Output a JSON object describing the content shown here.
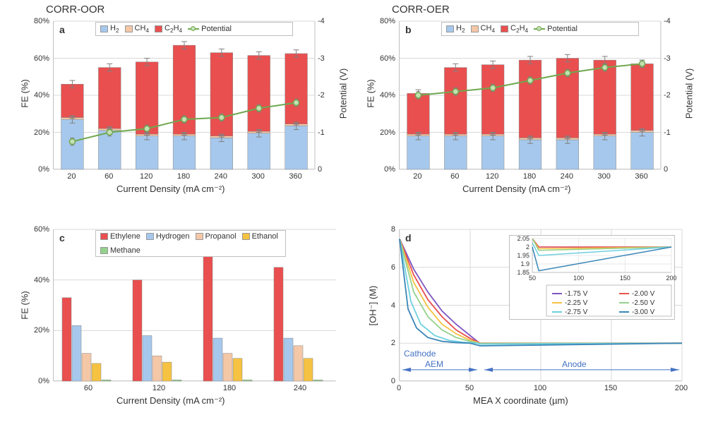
{
  "panels": {
    "a": {
      "title": "CORR-OOR",
      "label": "a",
      "xlabel": "Current Density (mA cm⁻²)",
      "ylabel": "FE (%)",
      "y2label": "Potential (V)",
      "ylim": [
        0,
        80
      ],
      "ytick_step": 20,
      "y2lim": [
        0,
        -4
      ],
      "y2tick_step": 1,
      "categories": [
        "20",
        "60",
        "120",
        "180",
        "240",
        "300",
        "360"
      ],
      "series": {
        "H2": {
          "label": "H₂",
          "color": "#a6c8ec",
          "values": [
            27,
            21,
            18,
            18,
            17,
            19.5,
            23.5
          ],
          "err": [
            2,
            2,
            2,
            2,
            2,
            2,
            2
          ]
        },
        "CH4": {
          "label": "CH₄",
          "color": "#f4c7a7",
          "values": [
            1,
            1,
            1,
            1,
            1,
            1,
            1
          ],
          "err": [
            0.5,
            0.5,
            0.5,
            0.5,
            0.5,
            0.5,
            0.5
          ]
        },
        "C2H4": {
          "label": "C₂H₄",
          "color": "#e94f4f",
          "values": [
            18,
            33,
            39,
            48,
            45,
            41,
            38
          ],
          "err": [
            2,
            2,
            2,
            2,
            2,
            2,
            2
          ]
        }
      },
      "stack_order": [
        "H2",
        "CH4",
        "C2H4"
      ],
      "potential": {
        "label": "Potential",
        "color": "#6fa84f",
        "marker_fill": "#c5e0b4",
        "values": [
          -0.75,
          -1.0,
          -1.1,
          -1.35,
          -1.4,
          -1.65,
          -1.8
        ],
        "err": [
          0.1,
          0.1,
          0.1,
          0.1,
          0.1,
          0.1,
          0.1
        ]
      },
      "bar_width": 0.6,
      "grid_color": "#d9d9d9",
      "axis_color": "#bfbfbf",
      "title_fontsize": 15,
      "label_fontsize": 13,
      "tick_fontsize": 11,
      "legend_html": [
        "H<sub>2</sub>",
        "CH<sub>4</sub>",
        "C<sub>2</sub>H<sub>4</sub>",
        "Potential"
      ]
    },
    "b": {
      "title": "CORR-OER",
      "label": "b",
      "xlabel": "Current Density (mA cm⁻²)",
      "ylabel": "FE (%)",
      "y2label": "Potential (V)",
      "ylim": [
        0,
        80
      ],
      "ytick_step": 20,
      "y2lim": [
        0,
        -4
      ],
      "y2tick_step": 1,
      "categories": [
        "20",
        "60",
        "120",
        "180",
        "240",
        "300",
        "360"
      ],
      "series": {
        "H2": {
          "label": "H₂",
          "color": "#a6c8ec",
          "values": [
            18,
            18,
            18,
            16,
            16,
            18,
            20
          ],
          "err": [
            2,
            2,
            2,
            2,
            2,
            2,
            2
          ]
        },
        "CH4": {
          "label": "CH₄",
          "color": "#f4c7a7",
          "values": [
            1,
            1,
            1,
            1,
            1,
            1,
            1
          ],
          "err": [
            0.5,
            0.5,
            0.5,
            0.5,
            0.5,
            0.5,
            0.5
          ]
        },
        "C2H4": {
          "label": "C₂H₄",
          "color": "#e94f4f",
          "values": [
            22,
            36,
            37.5,
            42,
            43,
            40,
            36
          ],
          "err": [
            2,
            2,
            2,
            2,
            2,
            2,
            2
          ]
        }
      },
      "stack_order": [
        "H2",
        "CH4",
        "C2H4"
      ],
      "potential": {
        "label": "Potential",
        "color": "#6fa84f",
        "marker_fill": "#c5e0b4",
        "values": [
          -2.0,
          -2.1,
          -2.2,
          -2.4,
          -2.6,
          -2.75,
          -2.85
        ],
        "err": [
          0.1,
          0.1,
          0.1,
          0.1,
          0.1,
          0.1,
          0.1
        ]
      },
      "bar_width": 0.6,
      "grid_color": "#d9d9d9",
      "axis_color": "#bfbfbf",
      "legend_html": [
        "H<sub>2</sub>",
        "CH<sub>4</sub>",
        "C<sub>2</sub>H<sub>4</sub>",
        "Potential"
      ]
    },
    "c": {
      "label": "c",
      "xlabel": "Current Density (mA cm⁻²)",
      "ylabel": "FE (%)",
      "ylim": [
        0,
        60
      ],
      "ytick_step": 20,
      "categories": [
        "60",
        "120",
        "180",
        "240"
      ],
      "series": {
        "Ethylene": {
          "label": "Ethylene",
          "color": "#e94f4f",
          "values": [
            33,
            40,
            50,
            45
          ]
        },
        "Hydrogen": {
          "label": "Hydrogen",
          "color": "#a6c8ec",
          "values": [
            22,
            18,
            17,
            17
          ]
        },
        "Propanol": {
          "label": "Propanol",
          "color": "#f4c7a7",
          "values": [
            11,
            10,
            11,
            14
          ]
        },
        "Ethanol": {
          "label": "Ethanol",
          "color": "#f5c242",
          "values": [
            7,
            7.5,
            9,
            9
          ]
        },
        "Methane": {
          "label": "Methane",
          "color": "#94d18c",
          "values": [
            0.5,
            0.5,
            0.5,
            0.5
          ]
        }
      },
      "order": [
        "Ethylene",
        "Hydrogen",
        "Propanol",
        "Ethanol",
        "Methane"
      ],
      "bar_width": 0.14,
      "grid_color": "#d9d9d9",
      "axis_color": "#bfbfbf"
    },
    "d": {
      "label": "d",
      "xlabel": "MEA X coordinate (µm)",
      "ylabel": "[OH⁻] (M)",
      "xlim": [
        0,
        200
      ],
      "xtick_step": 50,
      "ylim": [
        0,
        8
      ],
      "ytick_step": 2,
      "series": [
        {
          "label": "-1.75 V",
          "color": "#7e57c2",
          "points": [
            [
              0,
              7.5
            ],
            [
              10,
              5.9
            ],
            [
              20,
              4.7
            ],
            [
              30,
              3.7
            ],
            [
              40,
              3.0
            ],
            [
              50,
              2.4
            ],
            [
              55,
              2.1
            ],
            [
              57,
              2.0
            ],
            [
              200,
              2.0
            ]
          ]
        },
        {
          "label": "-2.00 V",
          "color": "#e94f4f",
          "points": [
            [
              0,
              7.5
            ],
            [
              10,
              5.6
            ],
            [
              20,
              4.3
            ],
            [
              30,
              3.4
            ],
            [
              40,
              2.7
            ],
            [
              50,
              2.25
            ],
            [
              55,
              2.08
            ],
            [
              57,
              2.0
            ],
            [
              200,
              2.0
            ]
          ]
        },
        {
          "label": "-2.25 V",
          "color": "#f5c242",
          "points": [
            [
              0,
              7.5
            ],
            [
              10,
              5.2
            ],
            [
              20,
              3.9
            ],
            [
              30,
              3.0
            ],
            [
              40,
              2.5
            ],
            [
              50,
              2.15
            ],
            [
              55,
              2.05
            ],
            [
              57,
              1.99
            ],
            [
              200,
              2.0
            ]
          ]
        },
        {
          "label": "-2.50 V",
          "color": "#94d18c",
          "points": [
            [
              0,
              7.5
            ],
            [
              10,
              4.7
            ],
            [
              20,
              3.4
            ],
            [
              30,
              2.7
            ],
            [
              40,
              2.3
            ],
            [
              50,
              2.1
            ],
            [
              55,
              2.02
            ],
            [
              57,
              1.98
            ],
            [
              200,
              2.0
            ]
          ]
        },
        {
          "label": "-2.75 V",
          "color": "#6dd0e0",
          "points": [
            [
              0,
              7.5
            ],
            [
              8,
              4.2
            ],
            [
              15,
              3.0
            ],
            [
              25,
              2.4
            ],
            [
              35,
              2.15
            ],
            [
              45,
              2.05
            ],
            [
              55,
              2.0
            ],
            [
              57,
              1.95
            ],
            [
              200,
              2.0
            ]
          ]
        },
        {
          "label": "-3.00 V",
          "color": "#3a86b8",
          "points": [
            [
              0,
              7.5
            ],
            [
              6,
              3.8
            ],
            [
              12,
              2.8
            ],
            [
              20,
              2.3
            ],
            [
              30,
              2.1
            ],
            [
              40,
              2.03
            ],
            [
              50,
              2.0
            ],
            [
              57,
              1.86
            ],
            [
              200,
              2.0
            ]
          ]
        }
      ],
      "annotations": {
        "cathode": "Cathode",
        "aem": "AEM",
        "anode": "Anode"
      },
      "inset": {
        "xlim": [
          50,
          200
        ],
        "xtick_step": 50,
        "ylim": [
          1.85,
          2.05
        ],
        "ytick_step": 0.05,
        "series_ref": true
      },
      "grid_color": "#d9d9d9",
      "axis_color": "#bfbfbf"
    }
  },
  "colors": {
    "text": "#333333",
    "accent_blue": "#4472c4"
  }
}
